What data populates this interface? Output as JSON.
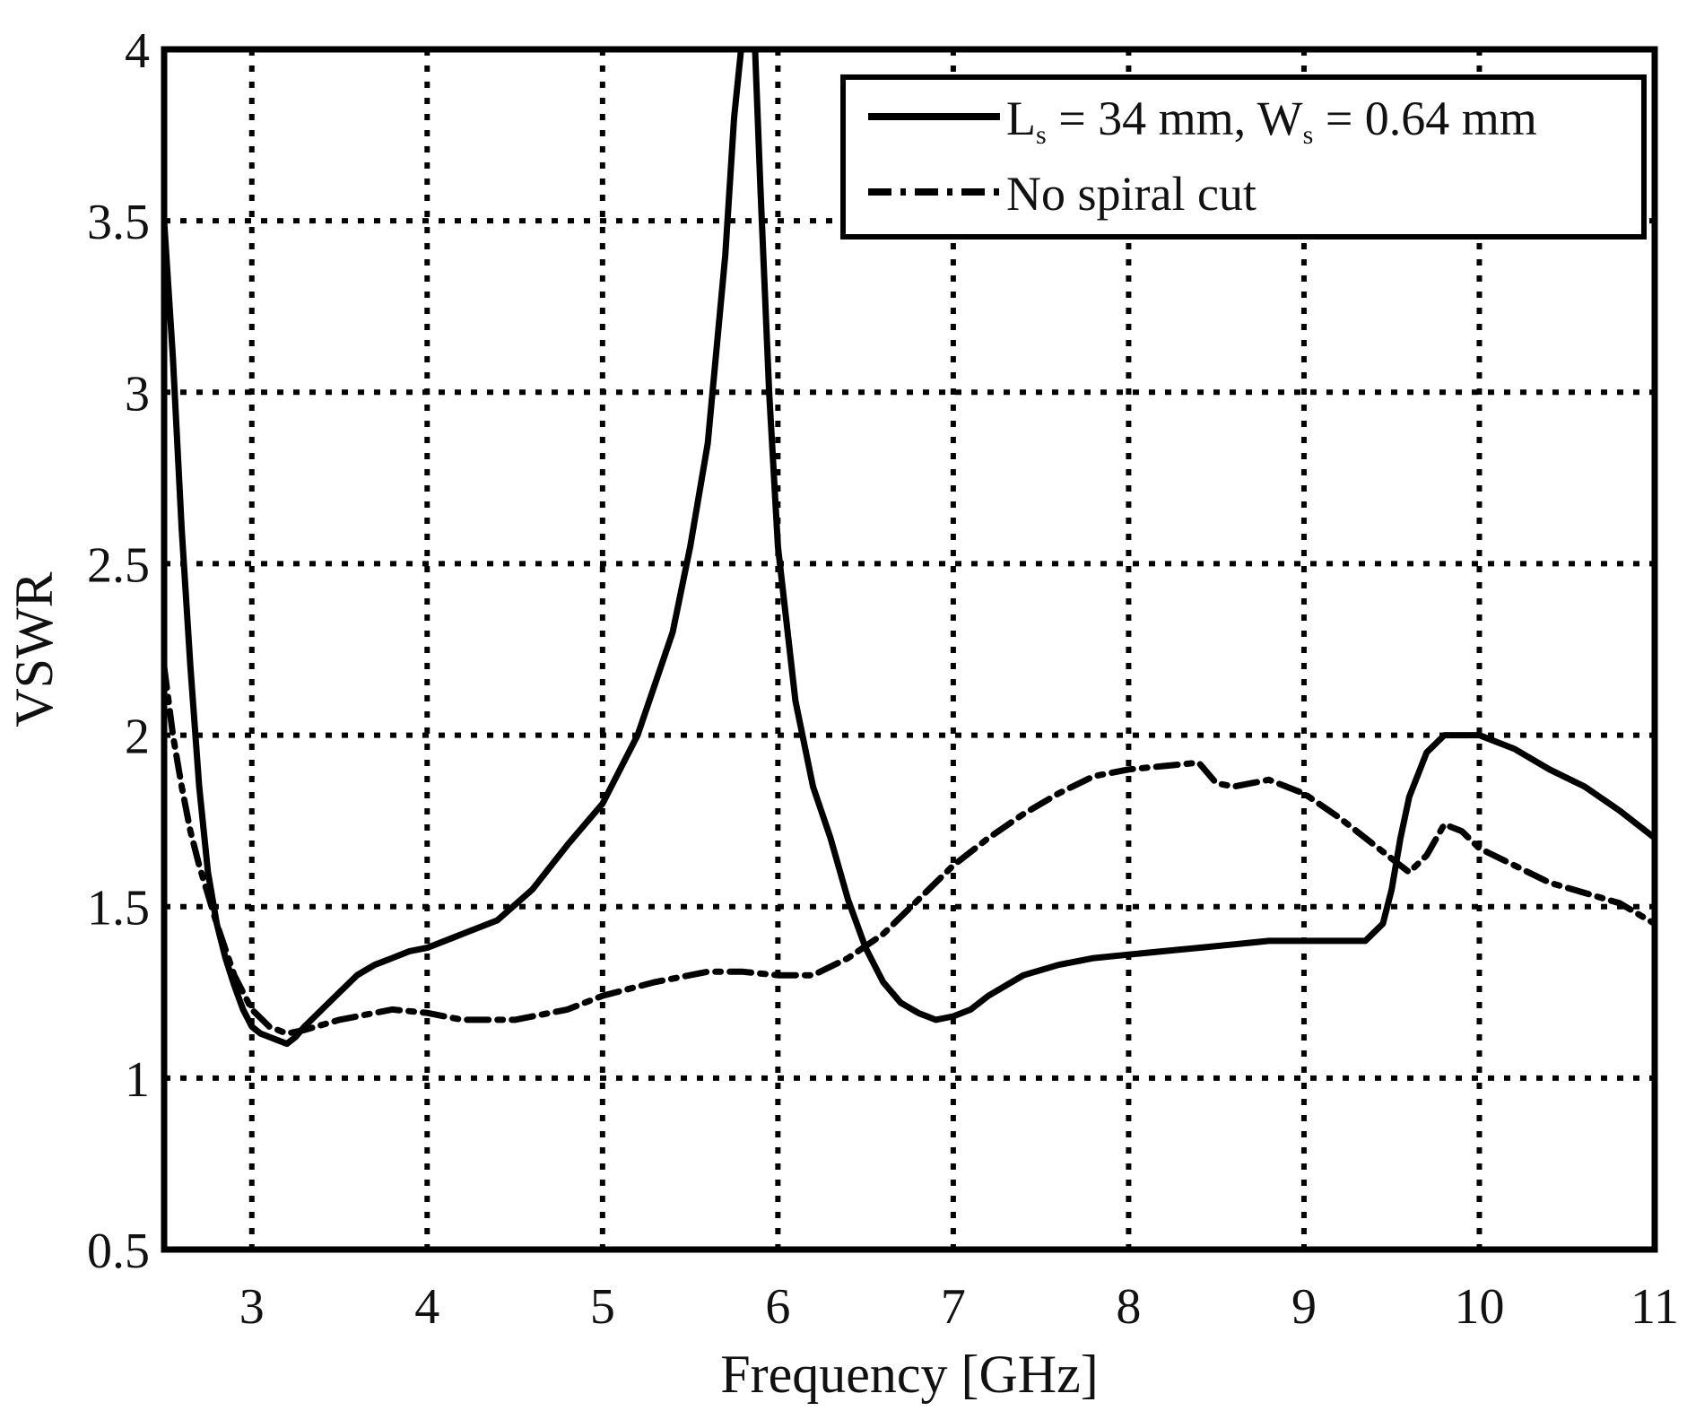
{
  "chart_data": {
    "type": "line",
    "xlabel": "Frequency [GHz]",
    "ylabel": "VSWR",
    "xlim": [
      2.5,
      11
    ],
    "ylim": [
      0.5,
      4
    ],
    "x_ticks": [
      "3",
      "4",
      "5",
      "6",
      "7",
      "8",
      "9",
      "10",
      "11"
    ],
    "y_ticks": [
      "0.5",
      "1",
      "1.5",
      "2",
      "2.5",
      "3",
      "3.5",
      "4"
    ],
    "x_tick_values": [
      3,
      4,
      5,
      6,
      7,
      8,
      9,
      10,
      11
    ],
    "y_tick_values": [
      0.5,
      1,
      1.5,
      2,
      2.5,
      3,
      3.5,
      4
    ],
    "grid": true,
    "legend_position": "top-right",
    "colors": {
      "line": "#000000",
      "grid": "#000000",
      "background": "#ffffff"
    },
    "series": [
      {
        "name_main": "L",
        "name_sub": "s",
        "name_mid": " = 34 mm, W",
        "name_sub2": "s",
        "name_end": " = 0.64 mm",
        "style": "solid",
        "x": [
          2.5,
          2.55,
          2.6,
          2.65,
          2.7,
          2.75,
          2.8,
          2.85,
          2.9,
          2.95,
          3.0,
          3.05,
          3.1,
          3.15,
          3.2,
          3.25,
          3.3,
          3.4,
          3.5,
          3.6,
          3.7,
          3.8,
          3.9,
          4.0,
          4.2,
          4.4,
          4.6,
          4.8,
          5.0,
          5.2,
          5.4,
          5.5,
          5.6,
          5.7,
          5.75,
          5.79,
          5.8,
          5.86,
          5.87,
          5.9,
          5.95,
          6.0,
          6.1,
          6.2,
          6.3,
          6.4,
          6.5,
          6.6,
          6.7,
          6.8,
          6.9,
          7.0,
          7.1,
          7.2,
          7.4,
          7.6,
          7.8,
          8.0,
          8.2,
          8.4,
          8.6,
          8.8,
          9.0,
          9.2,
          9.35,
          9.45,
          9.5,
          9.55,
          9.6,
          9.7,
          9.8,
          9.9,
          10.0,
          10.1,
          10.2,
          10.4,
          10.6,
          10.8,
          11.0
        ],
        "y": [
          3.5,
          3.1,
          2.6,
          2.2,
          1.85,
          1.6,
          1.45,
          1.35,
          1.27,
          1.2,
          1.15,
          1.13,
          1.12,
          1.11,
          1.1,
          1.12,
          1.15,
          1.2,
          1.25,
          1.3,
          1.33,
          1.35,
          1.37,
          1.38,
          1.42,
          1.46,
          1.55,
          1.68,
          1.8,
          2.0,
          2.3,
          2.55,
          2.85,
          3.4,
          3.8,
          4.0,
          4.0,
          4.0,
          4.0,
          3.6,
          3.0,
          2.55,
          2.1,
          1.85,
          1.7,
          1.52,
          1.38,
          1.28,
          1.22,
          1.19,
          1.17,
          1.18,
          1.2,
          1.24,
          1.3,
          1.33,
          1.35,
          1.36,
          1.37,
          1.38,
          1.39,
          1.4,
          1.4,
          1.4,
          1.4,
          1.45,
          1.55,
          1.7,
          1.82,
          1.95,
          2.0,
          2.0,
          2.0,
          1.98,
          1.96,
          1.9,
          1.85,
          1.78,
          1.7
        ]
      },
      {
        "name": "No spiral cut",
        "style": "dash-dot",
        "x": [
          2.5,
          2.55,
          2.6,
          2.65,
          2.7,
          2.8,
          2.9,
          3.0,
          3.1,
          3.2,
          3.3,
          3.5,
          3.8,
          4.0,
          4.2,
          4.5,
          4.8,
          5.0,
          5.3,
          5.6,
          5.8,
          6.0,
          6.2,
          6.4,
          6.6,
          6.8,
          7.0,
          7.2,
          7.4,
          7.6,
          7.8,
          8.0,
          8.2,
          8.4,
          8.5,
          8.6,
          8.8,
          9.0,
          9.2,
          9.4,
          9.6,
          9.7,
          9.8,
          9.9,
          10.0,
          10.2,
          10.4,
          10.6,
          10.8,
          11.0
        ],
        "y": [
          2.2,
          2.0,
          1.85,
          1.72,
          1.62,
          1.45,
          1.3,
          1.2,
          1.15,
          1.13,
          1.14,
          1.17,
          1.2,
          1.19,
          1.17,
          1.17,
          1.2,
          1.24,
          1.28,
          1.31,
          1.31,
          1.3,
          1.3,
          1.35,
          1.42,
          1.52,
          1.62,
          1.7,
          1.77,
          1.83,
          1.88,
          1.9,
          1.91,
          1.92,
          1.86,
          1.85,
          1.87,
          1.83,
          1.76,
          1.68,
          1.6,
          1.65,
          1.74,
          1.72,
          1.67,
          1.62,
          1.57,
          1.54,
          1.51,
          1.45
        ]
      }
    ]
  }
}
